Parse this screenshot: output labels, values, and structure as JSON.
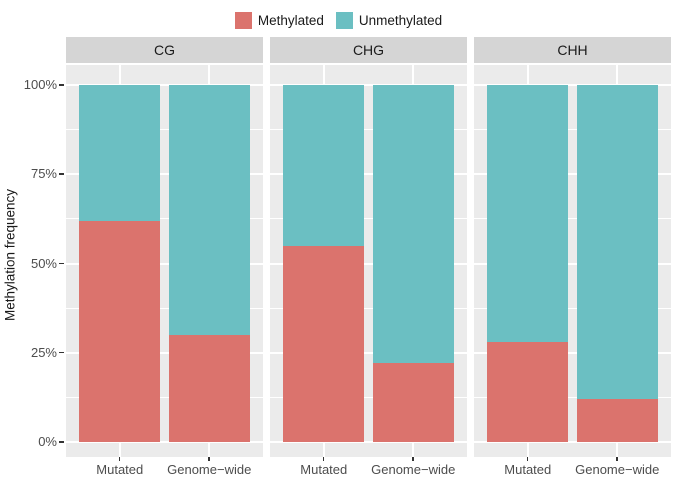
{
  "legend": {
    "items": [
      {
        "label": "Methylated",
        "color": "#DB736D"
      },
      {
        "label": "Unmethylated",
        "color": "#6BBFC2"
      }
    ]
  },
  "chart_data": {
    "type": "bar",
    "stacked": true,
    "unit": "percent",
    "title": "",
    "xlabel": "",
    "ylabel": "Methylation frequency",
    "ylim": [
      0,
      100
    ],
    "yticks": [
      {
        "value": 0,
        "label": "0%"
      },
      {
        "value": 25,
        "label": "25%"
      },
      {
        "value": 50,
        "label": "50%"
      },
      {
        "value": 75,
        "label": "75%"
      },
      {
        "value": 100,
        "label": "100%"
      }
    ],
    "minor_gridlines": [
      12.5,
      37.5,
      62.5,
      87.5
    ],
    "grid": true,
    "legend_position": "top",
    "categories": [
      "Mutated",
      "Genome−wide"
    ],
    "facets": [
      {
        "label": "CG",
        "series": [
          {
            "name": "Methylated",
            "values": [
              62,
              30
            ]
          },
          {
            "name": "Unmethylated",
            "values": [
              38,
              70
            ]
          }
        ]
      },
      {
        "label": "CHG",
        "series": [
          {
            "name": "Methylated",
            "values": [
              55,
              22
            ]
          },
          {
            "name": "Unmethylated",
            "values": [
              45,
              78
            ]
          }
        ]
      },
      {
        "label": "CHH",
        "series": [
          {
            "name": "Methylated",
            "values": [
              28,
              12
            ]
          },
          {
            "name": "Unmethylated",
            "values": [
              72,
              88
            ]
          }
        ]
      }
    ],
    "colors": {
      "Methylated": "#DB736D",
      "Unmethylated": "#6BBFC2"
    },
    "panel_bg": "#EBEBEB",
    "strip_bg": "#D5D5D5",
    "grid_color": "#FFFFFF",
    "axis_text_color": "#4D4D4D"
  }
}
